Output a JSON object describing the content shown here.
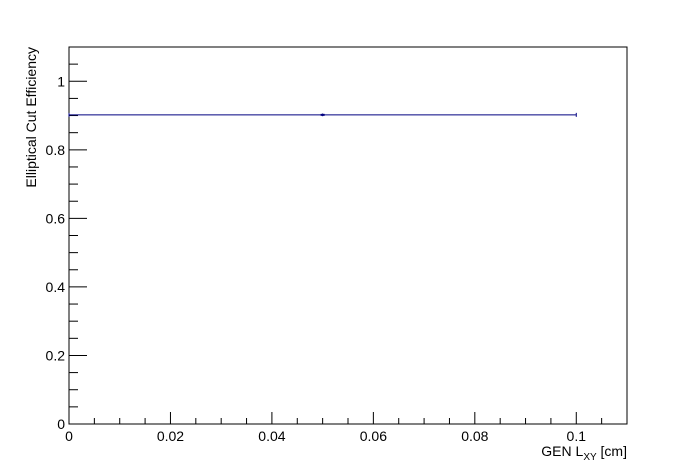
{
  "chart_data": {
    "type": "scatter",
    "xlabel": "GEN L",
    "xlabel_sub": "XY",
    "xlabel_unit": " [cm]",
    "ylabel": "Elliptical Cut Efficiency",
    "xlim": [
      0,
      0.11
    ],
    "ylim": [
      0,
      1.1
    ],
    "x_ticks": [
      "0",
      "0.02",
      "0.04",
      "0.06",
      "0.08",
      "0.1"
    ],
    "y_ticks": [
      "0",
      "0.2",
      "0.4",
      "0.6",
      "0.8",
      "1"
    ],
    "grid": false,
    "series": [
      {
        "color": "#000080",
        "points": [
          {
            "x": 0.05,
            "y": 0.902,
            "x_err_low": 0.05,
            "x_err_high": 0.05,
            "y_err": 0.001
          }
        ]
      }
    ]
  }
}
